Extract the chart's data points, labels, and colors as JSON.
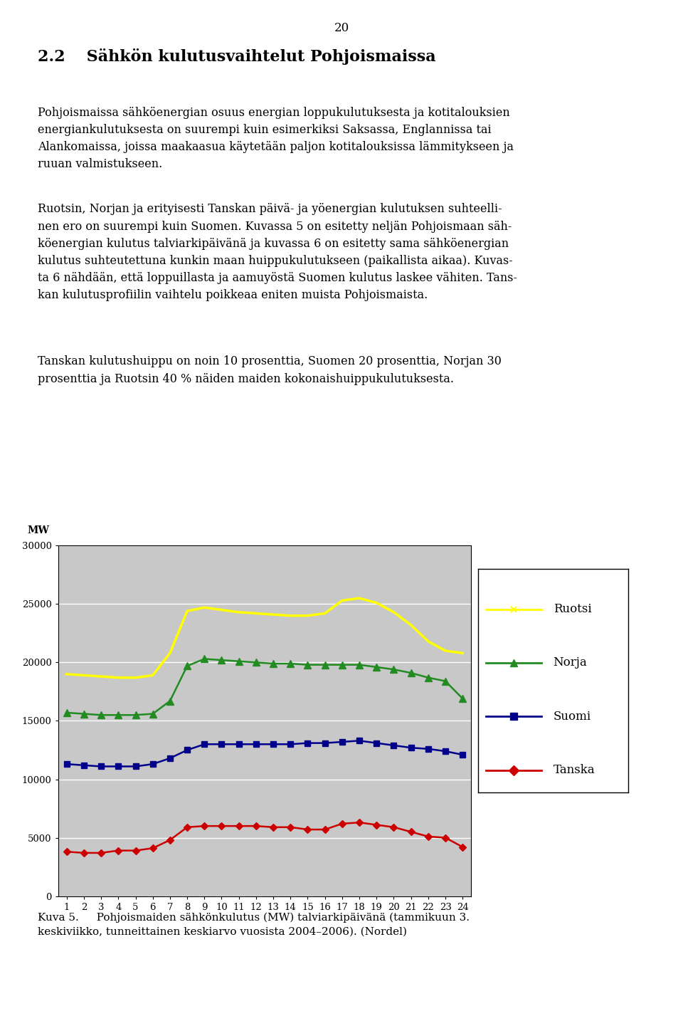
{
  "hours": [
    1,
    2,
    3,
    4,
    5,
    6,
    7,
    8,
    9,
    10,
    11,
    12,
    13,
    14,
    15,
    16,
    17,
    18,
    19,
    20,
    21,
    22,
    23,
    24
  ],
  "ruotsi": [
    19000,
    18900,
    18800,
    18700,
    18700,
    18900,
    20800,
    24400,
    24700,
    24500,
    24300,
    24200,
    24100,
    24000,
    24000,
    24200,
    25300,
    25500,
    25100,
    24300,
    23200,
    21800,
    21000,
    20800
  ],
  "norja": [
    15700,
    15600,
    15500,
    15500,
    15500,
    15600,
    16700,
    19700,
    20300,
    20200,
    20100,
    20000,
    19900,
    19900,
    19800,
    19800,
    19800,
    19800,
    19600,
    19400,
    19100,
    18700,
    18400,
    16900
  ],
  "suomi": [
    11300,
    11200,
    11100,
    11100,
    11100,
    11300,
    11800,
    12500,
    13000,
    13000,
    13000,
    13000,
    13000,
    13000,
    13100,
    13100,
    13200,
    13300,
    13100,
    12900,
    12700,
    12600,
    12400,
    12100
  ],
  "tanska": [
    3800,
    3700,
    3700,
    3900,
    3900,
    4100,
    4800,
    5900,
    6000,
    6000,
    6000,
    6000,
    5900,
    5900,
    5700,
    5700,
    6200,
    6300,
    6100,
    5900,
    5500,
    5100,
    5000,
    4200
  ],
  "ruotsi_color": "#FFFF00",
  "norja_color": "#228B22",
  "suomi_color": "#00008B",
  "tanska_color": "#CC0000",
  "plot_area_bg": "#C8C8C8",
  "ylim_min": 0,
  "ylim_max": 30000,
  "yticks": [
    0,
    5000,
    10000,
    15000,
    20000,
    25000,
    30000
  ],
  "xlim_min": 0.5,
  "xlim_max": 24.5,
  "xticks": [
    1,
    2,
    3,
    4,
    5,
    6,
    7,
    8,
    9,
    10,
    11,
    12,
    13,
    14,
    15,
    16,
    17,
    18,
    19,
    20,
    21,
    22,
    23,
    24
  ],
  "ylabel": "MW",
  "legend_labels": [
    "Ruotsi",
    "Norja",
    "Suomi",
    "Tanska"
  ],
  "page_number": "20",
  "section_title": "2.2   Sähkön kulutusvaihtelut Pohjoismaissa",
  "body1_lines": [
    "Pohjoismaissa sähköenergian osuus energian loppukulutuksesta ja kotitalouksien",
    "energiankulutuksesta on suurempi kuin esimerkiksi Saksassa, Englannissa tai",
    "Alankomaissa, joissa maakaasua käytetään paljon kotitalouksissa lämmitykseen ja",
    "ruuan valmistukseen."
  ],
  "body2_lines": [
    "Ruotsin, Norjan ja erityisesti Tanskan päivä- ja yöenergian kulutuksen suhteelli-",
    "nen ero on suurempi kuin Suomen. Kuvassa 5 on esitetty neljän Pohjoismaan säh-",
    "köenergian kulutus talviarkipäivänä ja kuvassa 6 on esitetty sama sähköenergian",
    "kulutus suhteutettuna kunkin maan huippukulutukseen (paikallista aikaa). Kuvas-",
    "ta 6 nähdään, että loppuillasta ja aamuyöstä Suomen kulutus laskee vähiten. Tans-",
    "kan kulutusprofiilin vaihtelu poikkeaa eniten muista Pohjoismaista."
  ],
  "body3_lines": [
    "Tanskan kulutushuippu on noin 10 prosenttia, Suomen 20 prosenttia, Norjan 30",
    "prosenttia ja Ruotsin 40 % näiden maiden kokonaishuippukulutuksesta."
  ],
  "caption_line1": "Kuva 5.   Pohjoismaiden sähkönkulutus (MW) talviarkipäivänä (tammikuun 3.",
  "caption_line2": "keskiviikko, tunneittainen keskiarvo vuosista 2004–2006). (Nordel)"
}
